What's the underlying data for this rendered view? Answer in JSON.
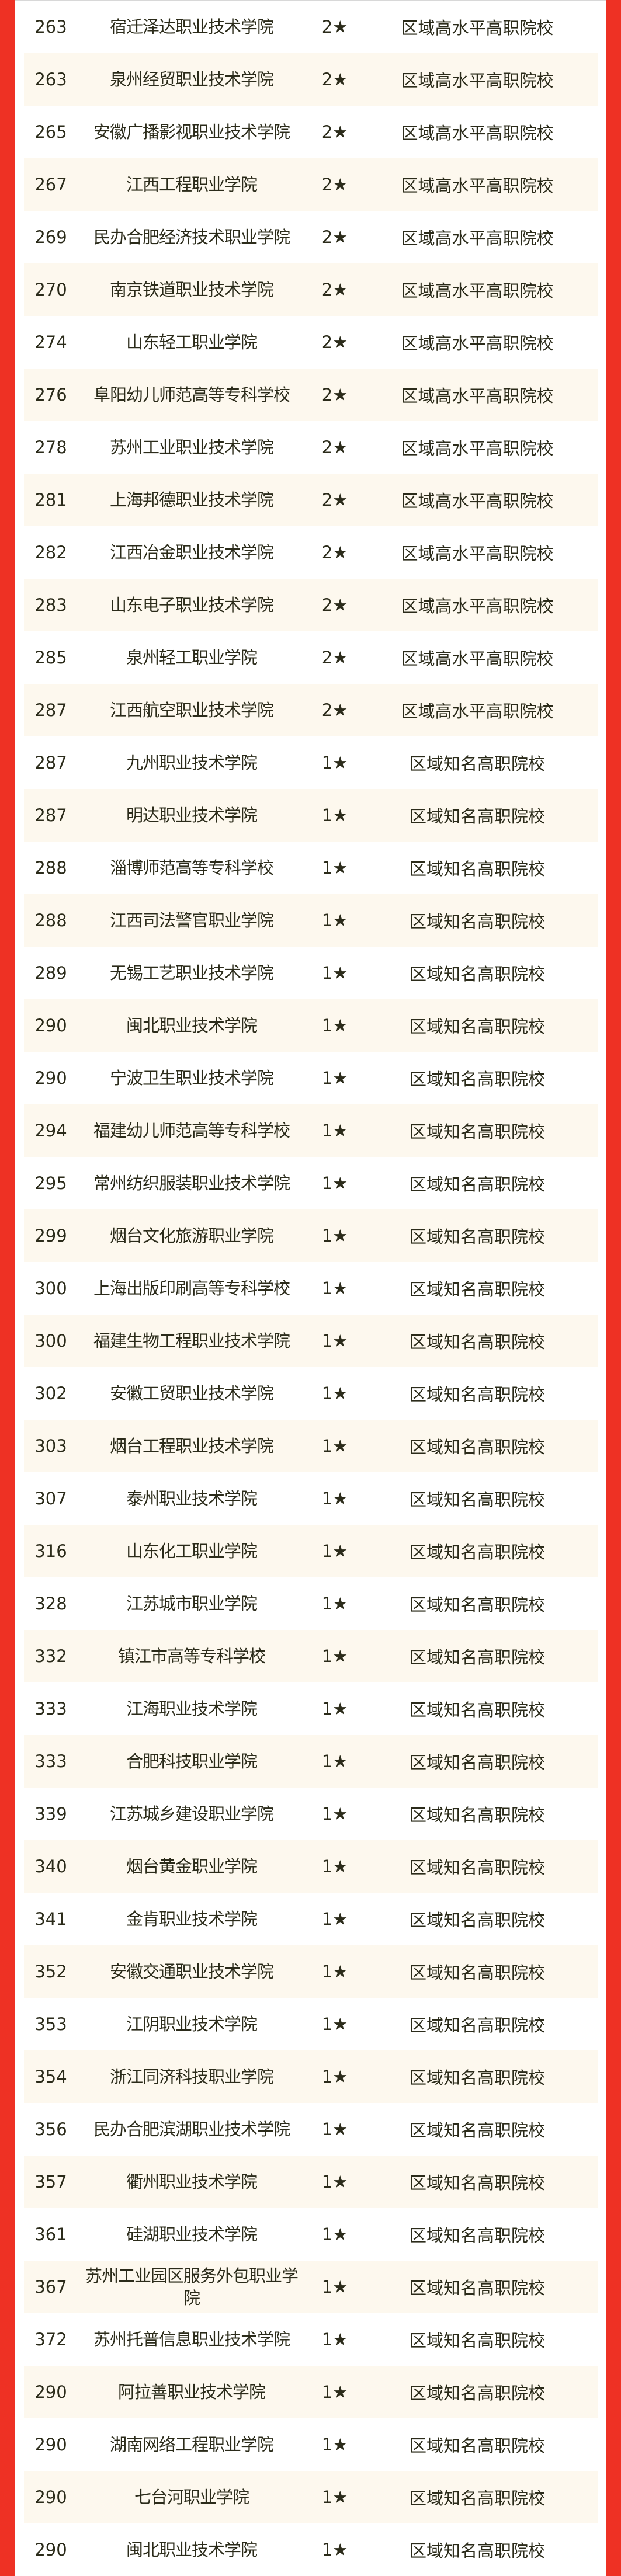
{
  "colors": {
    "border": "#ee3124",
    "text": "#2b2b1a",
    "alt_row": "#fdf8ee"
  },
  "rows": [
    {
      "rank": "263",
      "name": "宿迁泽达职业技术学院",
      "star": "2★",
      "level": "区域高水平高职院校"
    },
    {
      "rank": "263",
      "name": "泉州经贸职业技术学院",
      "star": "2★",
      "level": "区域高水平高职院校"
    },
    {
      "rank": "265",
      "name": "安徽广播影视职业技术学院",
      "star": "2★",
      "level": "区域高水平高职院校"
    },
    {
      "rank": "267",
      "name": "江西工程职业学院",
      "star": "2★",
      "level": "区域高水平高职院校"
    },
    {
      "rank": "269",
      "name": "民办合肥经济技术职业学院",
      "star": "2★",
      "level": "区域高水平高职院校"
    },
    {
      "rank": "270",
      "name": "南京铁道职业技术学院",
      "star": "2★",
      "level": "区域高水平高职院校"
    },
    {
      "rank": "274",
      "name": "山东轻工职业学院",
      "star": "2★",
      "level": "区域高水平高职院校"
    },
    {
      "rank": "276",
      "name": "阜阳幼儿师范高等专科学校",
      "star": "2★",
      "level": "区域高水平高职院校"
    },
    {
      "rank": "278",
      "name": "苏州工业职业技术学院",
      "star": "2★",
      "level": "区域高水平高职院校"
    },
    {
      "rank": "281",
      "name": "上海邦德职业技术学院",
      "star": "2★",
      "level": "区域高水平高职院校"
    },
    {
      "rank": "282",
      "name": "江西冶金职业技术学院",
      "star": "2★",
      "level": "区域高水平高职院校"
    },
    {
      "rank": "283",
      "name": "山东电子职业技术学院",
      "star": "2★",
      "level": "区域高水平高职院校"
    },
    {
      "rank": "285",
      "name": "泉州轻工职业学院",
      "star": "2★",
      "level": "区域高水平高职院校"
    },
    {
      "rank": "287",
      "name": "江西航空职业技术学院",
      "star": "2★",
      "level": "区域高水平高职院校"
    },
    {
      "rank": "287",
      "name": "九州职业技术学院",
      "star": "1★",
      "level": "区域知名高职院校"
    },
    {
      "rank": "287",
      "name": "明达职业技术学院",
      "star": "1★",
      "level": "区域知名高职院校"
    },
    {
      "rank": "288",
      "name": "淄博师范高等专科学校",
      "star": "1★",
      "level": "区域知名高职院校"
    },
    {
      "rank": "288",
      "name": "江西司法警官职业学院",
      "star": "1★",
      "level": "区域知名高职院校"
    },
    {
      "rank": "289",
      "name": "无锡工艺职业技术学院",
      "star": "1★",
      "level": "区域知名高职院校"
    },
    {
      "rank": "290",
      "name": "闽北职业技术学院",
      "star": "1★",
      "level": "区域知名高职院校"
    },
    {
      "rank": "290",
      "name": "宁波卫生职业技术学院",
      "star": "1★",
      "level": "区域知名高职院校"
    },
    {
      "rank": "294",
      "name": "福建幼儿师范高等专科学校",
      "star": "1★",
      "level": "区域知名高职院校"
    },
    {
      "rank": "295",
      "name": "常州纺织服装职业技术学院",
      "star": "1★",
      "level": "区域知名高职院校"
    },
    {
      "rank": "299",
      "name": "烟台文化旅游职业学院",
      "star": "1★",
      "level": "区域知名高职院校"
    },
    {
      "rank": "300",
      "name": "上海出版印刷高等专科学校",
      "star": "1★",
      "level": "区域知名高职院校"
    },
    {
      "rank": "300",
      "name": "福建生物工程职业技术学院",
      "star": "1★",
      "level": "区域知名高职院校"
    },
    {
      "rank": "302",
      "name": "安徽工贸职业技术学院",
      "star": "1★",
      "level": "区域知名高职院校"
    },
    {
      "rank": "303",
      "name": "烟台工程职业技术学院",
      "star": "1★",
      "level": "区域知名高职院校"
    },
    {
      "rank": "307",
      "name": "泰州职业技术学院",
      "star": "1★",
      "level": "区域知名高职院校"
    },
    {
      "rank": "316",
      "name": "山东化工职业学院",
      "star": "1★",
      "level": "区域知名高职院校"
    },
    {
      "rank": "328",
      "name": "江苏城市职业学院",
      "star": "1★",
      "level": "区域知名高职院校"
    },
    {
      "rank": "332",
      "name": "镇江市高等专科学校",
      "star": "1★",
      "level": "区域知名高职院校"
    },
    {
      "rank": "333",
      "name": "江海职业技术学院",
      "star": "1★",
      "level": "区域知名高职院校"
    },
    {
      "rank": "333",
      "name": "合肥科技职业学院",
      "star": "1★",
      "level": "区域知名高职院校"
    },
    {
      "rank": "339",
      "name": "江苏城乡建设职业学院",
      "star": "1★",
      "level": "区域知名高职院校"
    },
    {
      "rank": "340",
      "name": "烟台黄金职业学院",
      "star": "1★",
      "level": "区域知名高职院校"
    },
    {
      "rank": "341",
      "name": "金肯职业技术学院",
      "star": "1★",
      "level": "区域知名高职院校"
    },
    {
      "rank": "352",
      "name": "安徽交通职业技术学院",
      "star": "1★",
      "level": "区域知名高职院校"
    },
    {
      "rank": "353",
      "name": "江阴职业技术学院",
      "star": "1★",
      "level": "区域知名高职院校"
    },
    {
      "rank": "354",
      "name": "浙江同济科技职业学院",
      "star": "1★",
      "level": "区域知名高职院校"
    },
    {
      "rank": "356",
      "name": "民办合肥滨湖职业技术学院",
      "star": "1★",
      "level": "区域知名高职院校"
    },
    {
      "rank": "357",
      "name": "衢州职业技术学院",
      "star": "1★",
      "level": "区域知名高职院校"
    },
    {
      "rank": "361",
      "name": "硅湖职业技术学院",
      "star": "1★",
      "level": "区域知名高职院校"
    },
    {
      "rank": "367",
      "name": "苏州工业园区服务外包职业学院",
      "star": "1★",
      "level": "区域知名高职院校"
    },
    {
      "rank": "372",
      "name": "苏州托普信息职业技术学院",
      "star": "1★",
      "level": "区域知名高职院校"
    },
    {
      "rank": "290",
      "name": "阿拉善职业技术学院",
      "star": "1★",
      "level": "区域知名高职院校"
    },
    {
      "rank": "290",
      "name": "湖南网络工程职业学院",
      "star": "1★",
      "level": "区域知名高职院校"
    },
    {
      "rank": "290",
      "name": "七台河职业学院",
      "star": "1★",
      "level": "区域知名高职院校"
    },
    {
      "rank": "290",
      "name": "闽北职业技术学院",
      "star": "1★",
      "level": "区域知名高职院校"
    }
  ]
}
